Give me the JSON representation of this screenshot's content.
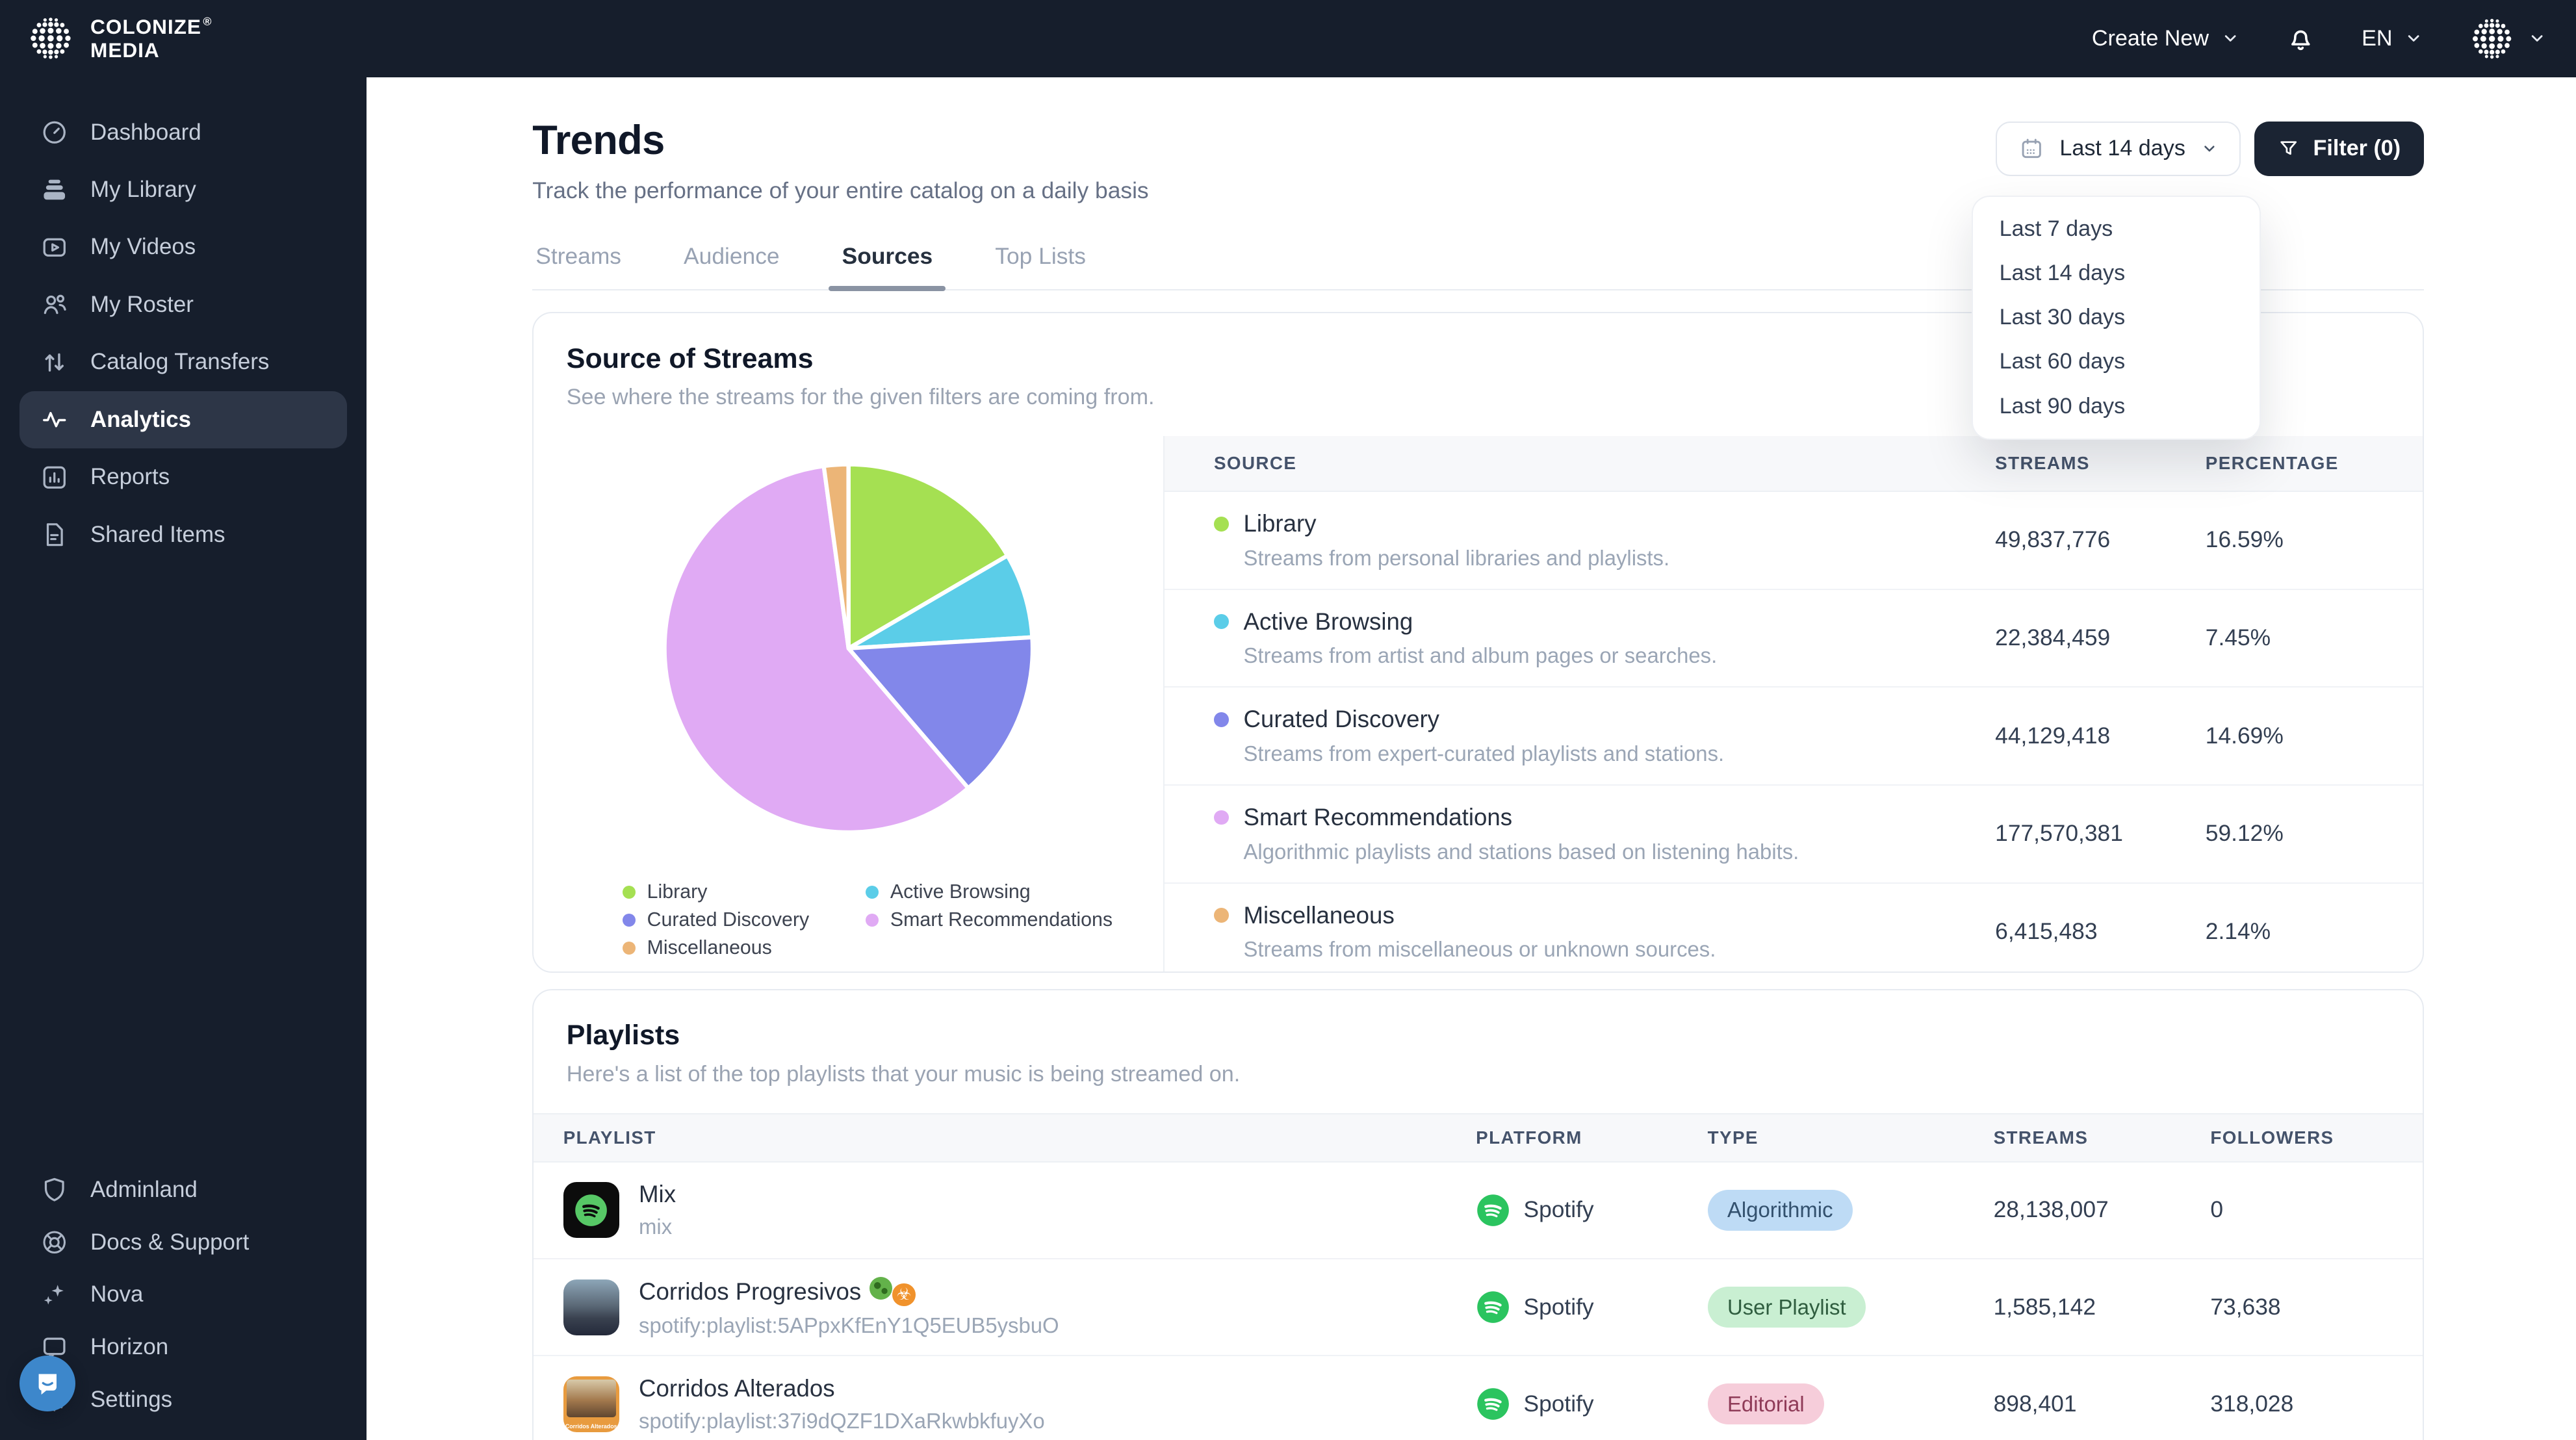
{
  "brand": {
    "line1": "COLONIZE",
    "registered": "®",
    "line2": "MEDIA"
  },
  "topbar": {
    "create_new": "Create New",
    "language": "EN"
  },
  "sidebar": {
    "main": [
      {
        "label": "Dashboard",
        "icon": "dashboard",
        "active": false
      },
      {
        "label": "My Library",
        "icon": "library",
        "active": false
      },
      {
        "label": "My Videos",
        "icon": "videos",
        "active": false
      },
      {
        "label": "My Roster",
        "icon": "roster",
        "active": false
      },
      {
        "label": "Catalog Transfers",
        "icon": "transfers",
        "active": false
      },
      {
        "label": "Analytics",
        "icon": "analytics",
        "active": true
      },
      {
        "label": "Reports",
        "icon": "reports",
        "active": false
      },
      {
        "label": "Shared Items",
        "icon": "shared",
        "active": false
      }
    ],
    "secondary": [
      {
        "label": "Adminland",
        "icon": "shield",
        "active": false
      },
      {
        "label": "Docs & Support",
        "icon": "lifebuoy",
        "active": false
      },
      {
        "label": "Nova",
        "icon": "sparkles",
        "active": false
      },
      {
        "label": "Horizon",
        "icon": "horizon",
        "active": false
      },
      {
        "label": "Settings",
        "icon": "gear",
        "active": false
      }
    ]
  },
  "page": {
    "title": "Trends",
    "subtitle": "Track the performance of your entire catalog on a daily basis"
  },
  "tabs": [
    {
      "label": "Streams",
      "active": false
    },
    {
      "label": "Audience",
      "active": false
    },
    {
      "label": "Sources",
      "active": true
    },
    {
      "label": "Top Lists",
      "active": false
    }
  ],
  "controls": {
    "date_range": "Last 14 days",
    "filter_label": "Filter (0)"
  },
  "date_menu": {
    "items": [
      {
        "label": "Last 7 days"
      },
      {
        "label": "Last 14 days"
      },
      {
        "label": "Last 30 days"
      },
      {
        "label": "Last 60 days"
      },
      {
        "label": "Last 90 days"
      }
    ]
  },
  "source_card": {
    "title": "Source of Streams",
    "subtitle": "See where the streams for the given filters are coming from.",
    "columns": [
      "Source",
      "Streams",
      "Percentage"
    ],
    "rows": [
      {
        "name": "Library",
        "desc": "Streams from personal libraries and playlists.",
        "streams": "49,837,776",
        "percentage": "16.59%",
        "color": "#a5e052"
      },
      {
        "name": "Active Browsing",
        "desc": "Streams from artist and album pages or searches.",
        "streams": "22,384,459",
        "percentage": "7.45%",
        "color": "#5bcde8"
      },
      {
        "name": "Curated Discovery",
        "desc": "Streams from expert-curated playlists and stations.",
        "streams": "44,129,418",
        "percentage": "14.69%",
        "color": "#8287ea"
      },
      {
        "name": "Smart Recommendations",
        "desc": "Algorithmic playlists and stations based on listening habits.",
        "streams": "177,570,381",
        "percentage": "59.12%",
        "color": "#e0aaf4"
      },
      {
        "name": "Miscellaneous",
        "desc": "Streams from miscellaneous or unknown sources.",
        "streams": "6,415,483",
        "percentage": "2.14%",
        "color": "#ecb577"
      }
    ]
  },
  "chart_data": {
    "type": "pie",
    "title": "Source of Streams",
    "labels": [
      "Library",
      "Active Browsing",
      "Curated Discovery",
      "Smart Recommendations",
      "Miscellaneous"
    ],
    "values_percent": [
      16.59,
      7.45,
      14.69,
      59.12,
      2.14
    ],
    "values_streams": [
      49837776,
      22384459,
      44129418,
      177570381,
      6415483
    ],
    "colors": [
      "#a5e052",
      "#5bcde8",
      "#8287ea",
      "#e0aaf4",
      "#ecb577"
    ],
    "legend_position": "bottom",
    "start_angle_deg": -90,
    "direction": "clockwise"
  },
  "playlists_card": {
    "title": "Playlists",
    "subtitle": "Here's a list of the top playlists that your music is being streamed on.",
    "columns": [
      "Playlist",
      "Platform",
      "Type",
      "Streams",
      "Followers"
    ],
    "rows": [
      {
        "name": "Mix",
        "emojis": [],
        "subtitle": "mix",
        "art": "spotify-tile",
        "art_label": "",
        "platform": "Spotify",
        "type": "Algorithmic",
        "type_bg": "#bedbf5",
        "type_fg": "#33516e",
        "streams": "28,138,007",
        "followers": "0"
      },
      {
        "name": "Corridos Progresivos",
        "emojis": [
          "microbe",
          "biohazard"
        ],
        "subtitle": "spotify:playlist:5APpxKfEnY1Q5EUB5ysbuO",
        "art": "photo-car",
        "art_label": "",
        "platform": "Spotify",
        "type": "User Playlist",
        "type_bg": "#c9efd2",
        "type_fg": "#2f5d3f",
        "streams": "1,585,142",
        "followers": "73,638"
      },
      {
        "name": "Corridos Alterados",
        "emojis": [],
        "subtitle": "spotify:playlist:37i9dQZF1DXaRkwbkfuyXo",
        "art": "photo-cowboy",
        "art_label": "Corridos Alterados",
        "platform": "Spotify",
        "type": "Editorial",
        "type_bg": "#f6cdda",
        "type_fg": "#8f3b58",
        "streams": "898,401",
        "followers": "318,028"
      }
    ]
  },
  "chat_widget": {
    "icon": "chat-bubble-smile"
  }
}
